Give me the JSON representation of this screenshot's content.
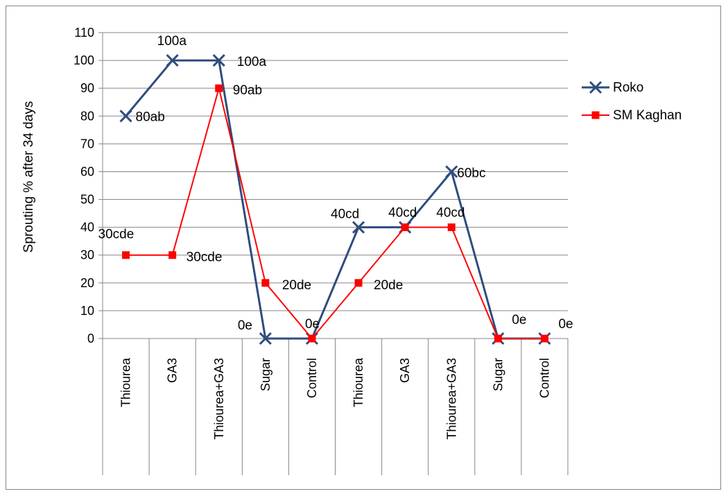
{
  "chart_data": {
    "type": "line",
    "title": "",
    "xlabel": "",
    "ylabel": "Sprouting % after 34 days",
    "ylim": [
      0,
      110
    ],
    "yticks": [
      0,
      10,
      20,
      30,
      40,
      50,
      60,
      70,
      80,
      90,
      100,
      110
    ],
    "grid": "horizontal",
    "legend_position": "right",
    "categories": [
      "Thiourea",
      "GA3",
      "Thiourea+GA3",
      "Sugar",
      "Control",
      "Thiourea",
      "GA3",
      "Thiourea+GA3",
      "Sugar",
      "Control"
    ],
    "series": [
      {
        "name": "Roko",
        "color": "#2E4C7E",
        "marker": "x",
        "values": [
          80,
          100,
          100,
          0,
          0,
          40,
          40,
          60,
          0,
          0
        ],
        "labels": [
          "80ab",
          "100a",
          "100a",
          "0e",
          "0e",
          "40cd",
          "40cd",
          "60bc",
          "0e",
          "0e"
        ]
      },
      {
        "name": "SM Kaghan",
        "color": "#FF0000",
        "marker": "square",
        "values": [
          30,
          30,
          90,
          20,
          0,
          20,
          40,
          40,
          0,
          0
        ],
        "labels": [
          "30cde",
          "30cde",
          "90ab",
          "20de",
          "",
          "20de",
          "",
          "40cd",
          "",
          ""
        ]
      }
    ]
  }
}
